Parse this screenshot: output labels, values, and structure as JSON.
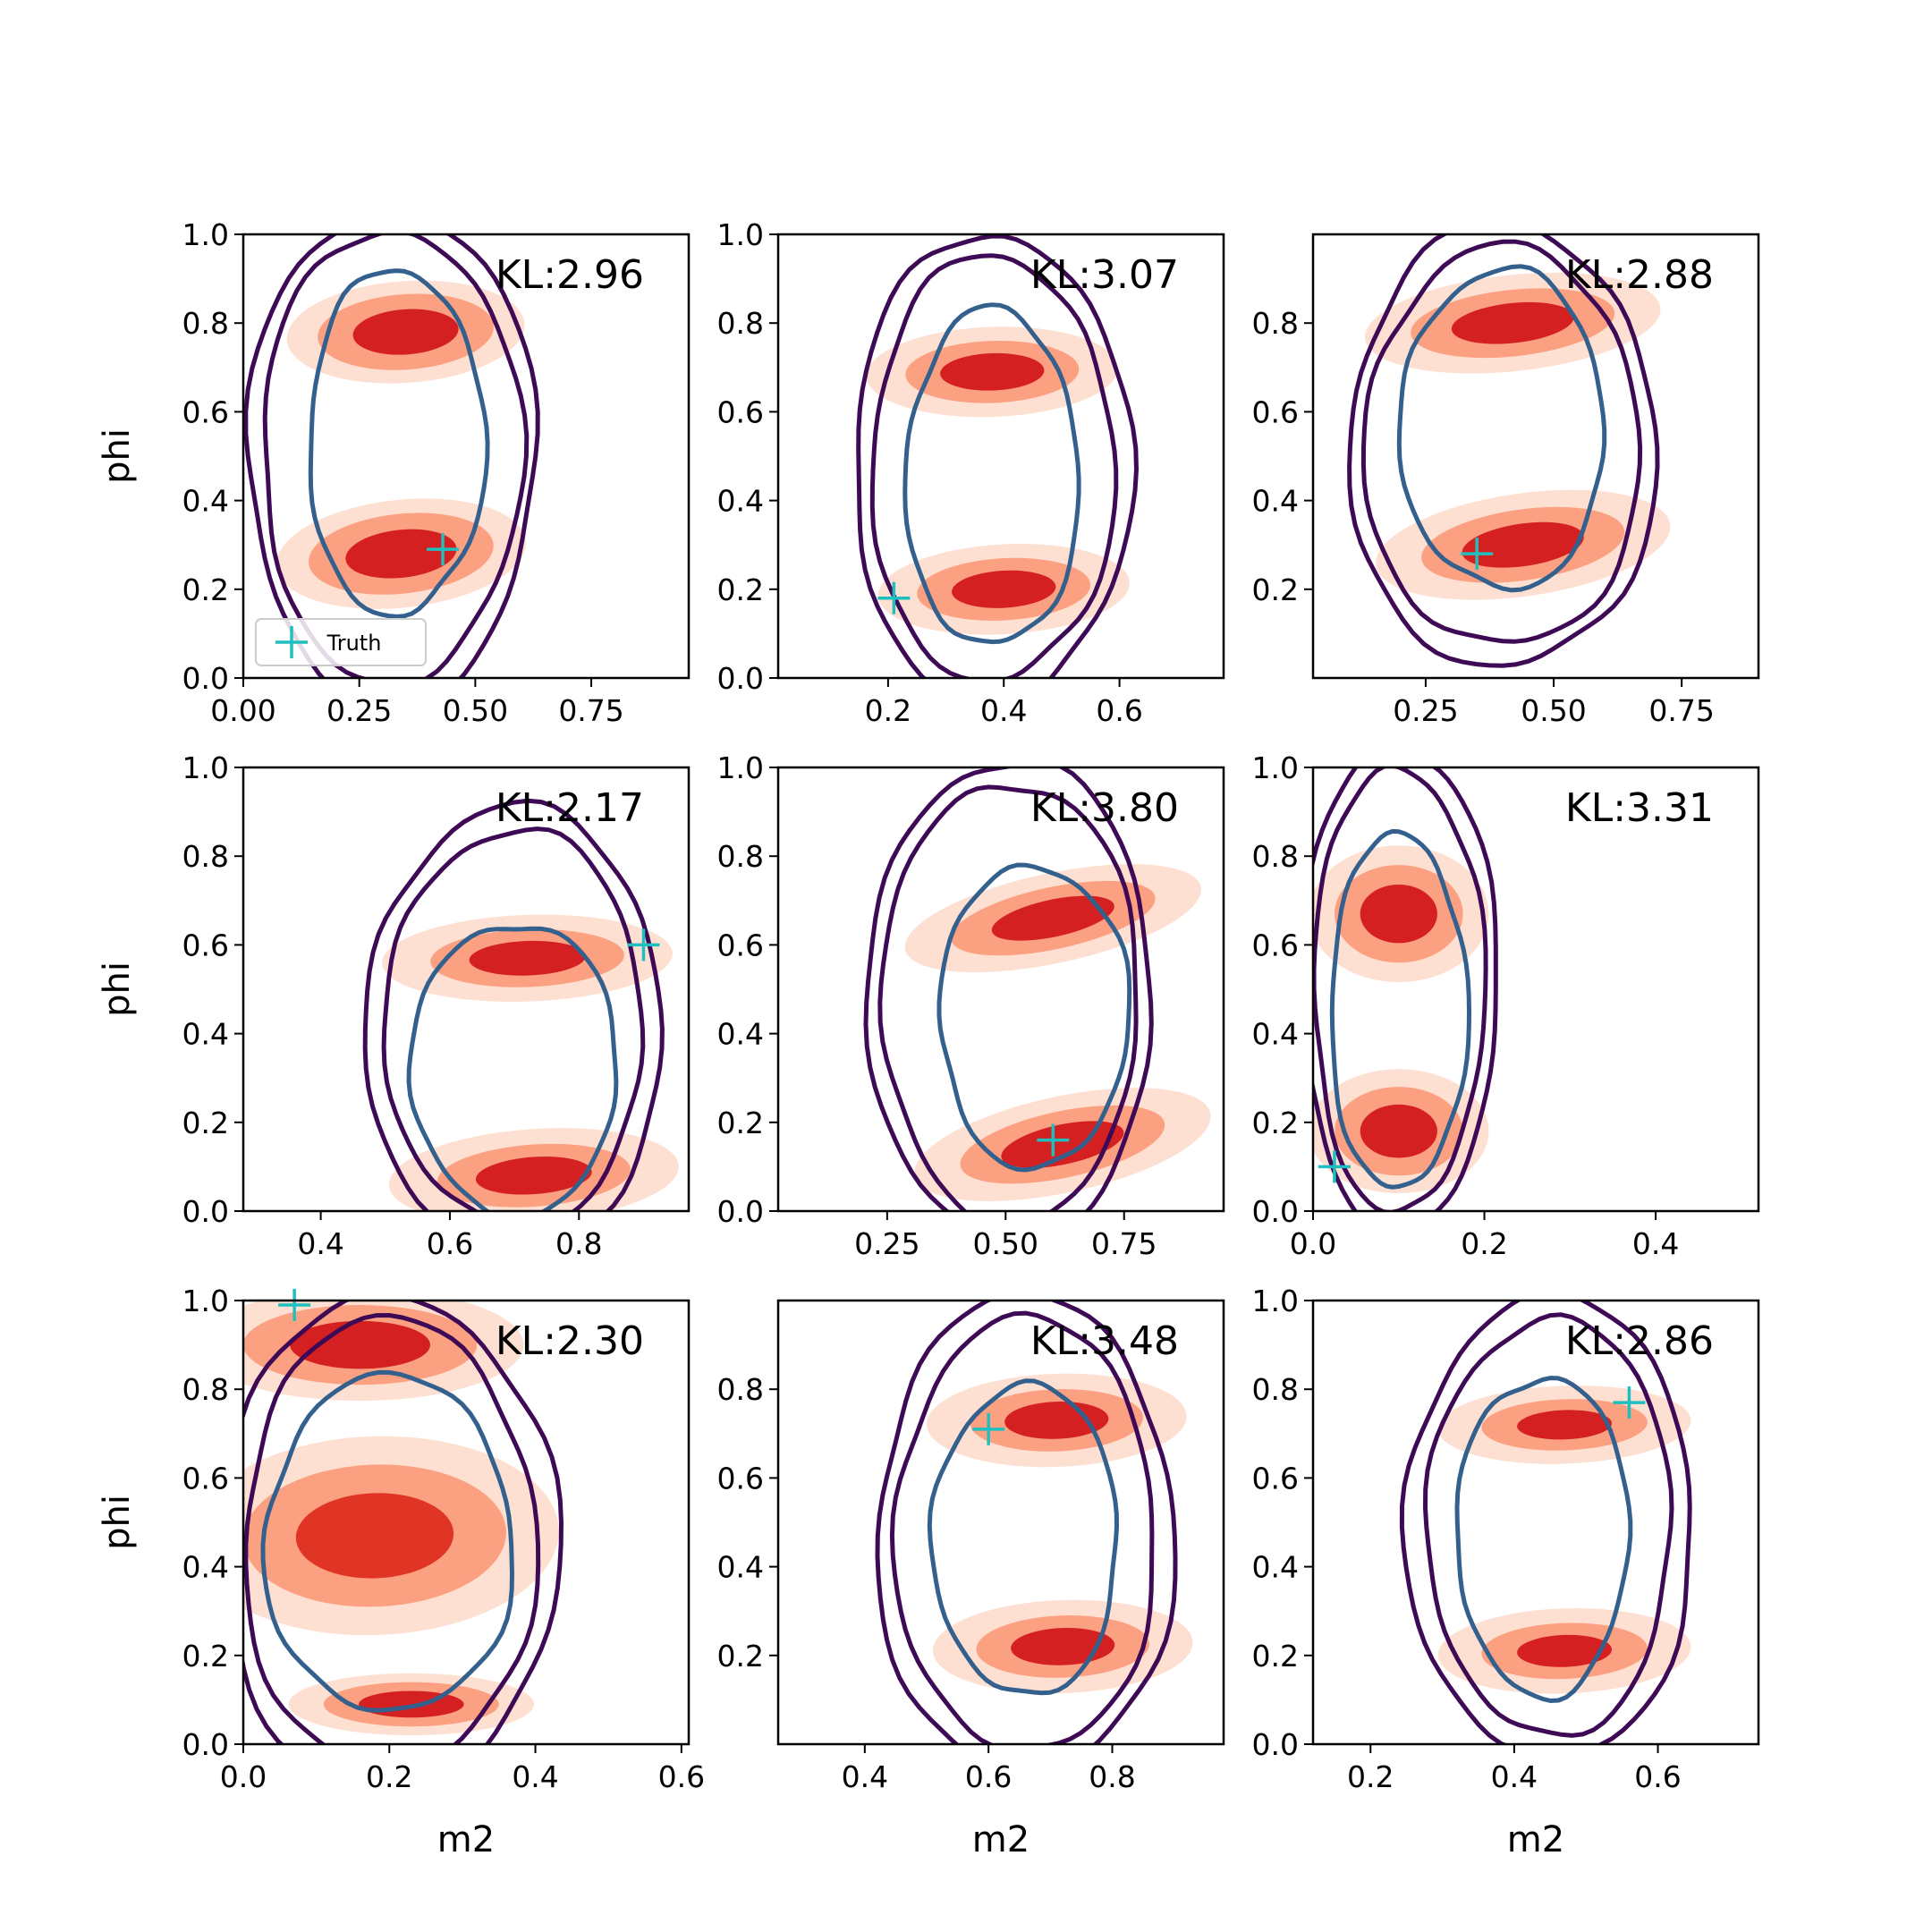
{
  "chart_data": {
    "type": "contour-grid",
    "colors": {
      "fill_light": "#fee0d2",
      "fill_mid": "#fca082",
      "fill_dark": "#d42020",
      "fill_mid_red": "#e03424",
      "contour_outer": "#3f0a55",
      "contour_inner": "#34608d",
      "truth": "#1fbfbf"
    },
    "legend": {
      "label": "Truth",
      "location": "lower-left",
      "panel": 0
    },
    "panels": [
      {
        "kl": "KL:2.96",
        "truth": [
          0.43,
          0.29
        ],
        "xlim": [
          0,
          0.96
        ],
        "ylim": [
          0,
          1.0
        ],
        "xticks": [
          0,
          0.25,
          0.5,
          0.75
        ],
        "xtick_labels": [
          "0.00",
          "0.25",
          "0.50",
          "0.75"
        ],
        "yticks": [
          0,
          0.2,
          0.4,
          0.6,
          0.8,
          1.0
        ],
        "ytick_labels": [
          "0.0",
          "0.2",
          "0.4",
          "0.6",
          "0.8",
          "1.0"
        ],
        "ylabel": "phi",
        "xlabel": "",
        "blobs": [
          {
            "c": [
              0.35,
              0.78
            ],
            "rx": 0.19,
            "ry": 0.085,
            "rot": 0.1
          },
          {
            "c": [
              0.34,
              0.28
            ],
            "rx": 0.2,
            "ry": 0.09,
            "rot": 0.15
          }
        ],
        "blob_scale": [
          1.35,
          1.0,
          0.6
        ],
        "outer1": {
          "c": [
            0.32,
            0.5
          ],
          "rx": 0.31,
          "ry": 0.56
        },
        "outer2": {
          "c": [
            0.32,
            0.5
          ],
          "rx": 0.28,
          "ry": 0.51
        },
        "inner": {
          "c": [
            0.33,
            0.53
          ],
          "rx": 0.19,
          "ry": 0.39
        }
      },
      {
        "kl": "KL:3.07",
        "truth": [
          0.21,
          0.18
        ],
        "xlim": [
          0.01,
          0.78
        ],
        "ylim": [
          0,
          1.0
        ],
        "xticks": [
          0.2,
          0.4,
          0.6
        ],
        "xtick_labels": [
          "0.2",
          "0.4",
          "0.6"
        ],
        "yticks": [
          0,
          0.2,
          0.4,
          0.6,
          0.8,
          1.0
        ],
        "ytick_labels": [
          "0.0",
          "0.2",
          "0.4",
          "0.6",
          "0.8",
          "1.0"
        ],
        "ylabel": "",
        "xlabel": "",
        "blobs": [
          {
            "c": [
              0.38,
              0.69
            ],
            "rx": 0.15,
            "ry": 0.07,
            "rot": 0.05
          },
          {
            "c": [
              0.4,
              0.2
            ],
            "rx": 0.15,
            "ry": 0.07,
            "rot": 0.08
          }
        ],
        "blob_scale": [
          1.45,
          1.0,
          0.6
        ],
        "outer1": {
          "c": [
            0.38,
            0.47
          ],
          "rx": 0.24,
          "ry": 0.53
        },
        "outer2": {
          "c": [
            0.38,
            0.47
          ],
          "rx": 0.21,
          "ry": 0.48
        },
        "inner": {
          "c": [
            0.38,
            0.45
          ],
          "rx": 0.15,
          "ry": 0.38
        }
      },
      {
        "kl": "KL:2.88",
        "truth": [
          0.35,
          0.28
        ],
        "xlim": [
          0.03,
          0.9
        ],
        "ylim": [
          0,
          1.0
        ],
        "xticks": [
          0.25,
          0.5,
          0.75
        ],
        "xtick_labels": [
          "0.25",
          "0.50",
          "0.75"
        ],
        "yticks": [
          0.2,
          0.4,
          0.6,
          0.8
        ],
        "ytick_labels": [
          "0.2",
          "0.4",
          "0.6",
          "0.8"
        ],
        "ylabel": "",
        "xlabel": "",
        "blobs": [
          {
            "c": [
              0.42,
              0.8
            ],
            "rx": 0.2,
            "ry": 0.075,
            "rot": 0.15
          },
          {
            "c": [
              0.44,
              0.3
            ],
            "rx": 0.2,
            "ry": 0.08,
            "rot": 0.2
          }
        ],
        "blob_scale": [
          1.45,
          1.0,
          0.6
        ],
        "outer1": {
          "c": [
            0.4,
            0.52
          ],
          "rx": 0.3,
          "ry": 0.5
        },
        "outer2": {
          "c": [
            0.4,
            0.52
          ],
          "rx": 0.27,
          "ry": 0.45
        },
        "inner": {
          "c": [
            0.4,
            0.56
          ],
          "rx": 0.2,
          "ry": 0.36
        }
      },
      {
        "kl": "KL:2.17",
        "truth": [
          0.9,
          0.6
        ],
        "xlim": [
          0.28,
          0.97
        ],
        "ylim": [
          0,
          1.0
        ],
        "xticks": [
          0.4,
          0.6,
          0.8
        ],
        "xtick_labels": [
          "0.4",
          "0.6",
          "0.8"
        ],
        "yticks": [
          0,
          0.2,
          0.4,
          0.6,
          0.8,
          1.0
        ],
        "ytick_labels": [
          "0.0",
          "0.2",
          "0.4",
          "0.6",
          "0.8",
          "1.0"
        ],
        "ylabel": "phi",
        "xlabel": "",
        "blobs": [
          {
            "c": [
              0.72,
              0.57
            ],
            "rx": 0.15,
            "ry": 0.065,
            "rot": 0.05
          },
          {
            "c": [
              0.73,
              0.08
            ],
            "rx": 0.15,
            "ry": 0.07,
            "rot": 0.1
          }
        ],
        "blob_scale": [
          1.5,
          1.0,
          0.6
        ],
        "outer1": {
          "c": [
            0.7,
            0.41
          ],
          "rx": 0.23,
          "ry": 0.5
        },
        "outer2": {
          "c": [
            0.7,
            0.41
          ],
          "rx": 0.2,
          "ry": 0.45
        },
        "inner": {
          "c": [
            0.7,
            0.32
          ],
          "rx": 0.16,
          "ry": 0.33
        }
      },
      {
        "kl": "KL:3.80",
        "truth": [
          0.6,
          0.16
        ],
        "xlim": [
          0.02,
          0.96
        ],
        "ylim": [
          0,
          1.0
        ],
        "xticks": [
          0.25,
          0.5,
          0.75
        ],
        "xtick_labels": [
          "0.25",
          "0.50",
          "0.75"
        ],
        "yticks": [
          0,
          0.2,
          0.4,
          0.6,
          0.8,
          1.0
        ],
        "ytick_labels": [
          "0.0",
          "0.2",
          "0.4",
          "0.6",
          "0.8",
          "1.0"
        ],
        "ylabel": "",
        "xlabel": "",
        "blobs": [
          {
            "c": [
              0.6,
              0.66
            ],
            "rx": 0.22,
            "ry": 0.07,
            "rot": 0.3
          },
          {
            "c": [
              0.62,
              0.15
            ],
            "rx": 0.22,
            "ry": 0.075,
            "rot": 0.3
          }
        ],
        "blob_scale": [
          1.45,
          1.0,
          0.6
        ],
        "outer1": {
          "c": [
            0.51,
            0.47
          ],
          "rx": 0.3,
          "ry": 0.55
        },
        "outer2": {
          "c": [
            0.51,
            0.47
          ],
          "rx": 0.27,
          "ry": 0.5
        },
        "inner": {
          "c": [
            0.56,
            0.44
          ],
          "rx": 0.2,
          "ry": 0.34
        }
      },
      {
        "kl": "KL:3.31",
        "truth": [
          0.025,
          0.1
        ],
        "xlim": [
          0,
          0.52
        ],
        "ylim": [
          0,
          1.0
        ],
        "xticks": [
          0,
          0.2,
          0.4
        ],
        "xtick_labels": [
          "0.0",
          "0.2",
          "0.4"
        ],
        "yticks": [
          0,
          0.2,
          0.4,
          0.6,
          0.8,
          1.0
        ],
        "ytick_labels": [
          "0.0",
          "0.2",
          "0.4",
          "0.6",
          "0.8",
          "1.0"
        ],
        "ylabel": "",
        "xlabel": "",
        "blobs": [
          {
            "c": [
              0.1,
              0.67
            ],
            "rx": 0.075,
            "ry": 0.11,
            "rot": 0
          },
          {
            "c": [
              0.1,
              0.18
            ],
            "rx": 0.075,
            "ry": 0.1,
            "rot": 0
          }
        ],
        "blob_scale": [
          1.4,
          1.0,
          0.6
        ],
        "outer1": {
          "c": [
            0.1,
            0.5
          ],
          "rx": 0.115,
          "ry": 0.55
        },
        "outer2": {
          "c": [
            0.1,
            0.5
          ],
          "rx": 0.1,
          "ry": 0.5
        },
        "inner": {
          "c": [
            0.1,
            0.45
          ],
          "rx": 0.08,
          "ry": 0.4
        }
      },
      {
        "kl": "KL:2.30",
        "truth": [
          0.07,
          0.99
        ],
        "xlim": [
          0,
          0.61
        ],
        "ylim": [
          0,
          1.0
        ],
        "xticks": [
          0,
          0.2,
          0.4,
          0.6
        ],
        "xtick_labels": [
          "0.0",
          "0.2",
          "0.4",
          "0.6"
        ],
        "yticks": [
          0,
          0.2,
          0.4,
          0.6,
          0.8,
          1.0
        ],
        "ytick_labels": [
          "0.0",
          "0.2",
          "0.4",
          "0.6",
          "0.8",
          "1.0"
        ],
        "ylabel": "phi",
        "xlabel": "m2",
        "blobs": [
          {
            "c": [
              0.16,
              0.9
            ],
            "rx": 0.16,
            "ry": 0.09,
            "rot": 0
          },
          {
            "c": [
              0.18,
              0.47
            ],
            "rx": 0.18,
            "ry": 0.16,
            "rot": 0.05
          },
          {
            "c": [
              0.23,
              0.09
            ],
            "rx": 0.12,
            "ry": 0.05,
            "rot": 0
          }
        ],
        "blob_scale": [
          1.4,
          1.0,
          0.6
        ],
        "outer1": {
          "c": [
            0.2,
            0.45
          ],
          "rx": 0.23,
          "ry": 0.56
        },
        "outer2": {
          "c": [
            0.2,
            0.45
          ],
          "rx": 0.2,
          "ry": 0.51
        },
        "inner": {
          "c": [
            0.2,
            0.45
          ],
          "rx": 0.17,
          "ry": 0.38
        }
      },
      {
        "kl": "KL:3.48",
        "truth": [
          0.6,
          0.71
        ],
        "xlim": [
          0.26,
          0.98
        ],
        "ylim": [
          0,
          1.0
        ],
        "xticks": [
          0.4,
          0.6,
          0.8
        ],
        "xtick_labels": [
          "0.4",
          "0.6",
          "0.8"
        ],
        "yticks": [
          0.2,
          0.4,
          0.6,
          0.8
        ],
        "ytick_labels": [
          "0.2",
          "0.4",
          "0.6",
          "0.8"
        ],
        "ylabel": "",
        "xlabel": "m2",
        "blobs": [
          {
            "c": [
              0.71,
              0.73
            ],
            "rx": 0.14,
            "ry": 0.07,
            "rot": 0.05
          },
          {
            "c": [
              0.72,
              0.22
            ],
            "rx": 0.14,
            "ry": 0.07,
            "rot": 0.05
          }
        ],
        "blob_scale": [
          1.5,
          1.0,
          0.6
        ],
        "outer1": {
          "c": [
            0.66,
            0.47
          ],
          "rx": 0.24,
          "ry": 0.54
        },
        "outer2": {
          "c": [
            0.66,
            0.47
          ],
          "rx": 0.21,
          "ry": 0.49
        },
        "inner": {
          "c": [
            0.66,
            0.46
          ],
          "rx": 0.15,
          "ry": 0.35
        }
      },
      {
        "kl": "KL:2.86",
        "truth": [
          0.56,
          0.77
        ],
        "xlim": [
          0.12,
          0.74
        ],
        "ylim": [
          0,
          1.0
        ],
        "xticks": [
          0.2,
          0.4,
          0.6
        ],
        "xtick_labels": [
          "0.2",
          "0.4",
          "0.6"
        ],
        "yticks": [
          0,
          0.2,
          0.4,
          0.6,
          0.8,
          1.0
        ],
        "ytick_labels": [
          "0.0",
          "0.2",
          "0.4",
          "0.6",
          "0.8",
          "1.0"
        ],
        "ylabel": "",
        "xlabel": "m2",
        "blobs": [
          {
            "c": [
              0.47,
              0.72
            ],
            "rx": 0.11,
            "ry": 0.055,
            "rot": 0.05
          },
          {
            "c": [
              0.47,
              0.21
            ],
            "rx": 0.11,
            "ry": 0.06,
            "rot": 0.05
          }
        ],
        "blob_scale": [
          1.6,
          1.05,
          0.6
        ],
        "outer1": {
          "c": [
            0.45,
            0.49
          ],
          "rx": 0.2,
          "ry": 0.52
        },
        "outer2": {
          "c": [
            0.45,
            0.49
          ],
          "rx": 0.17,
          "ry": 0.47
        },
        "inner": {
          "c": [
            0.44,
            0.47
          ],
          "rx": 0.12,
          "ry": 0.36
        }
      }
    ]
  }
}
